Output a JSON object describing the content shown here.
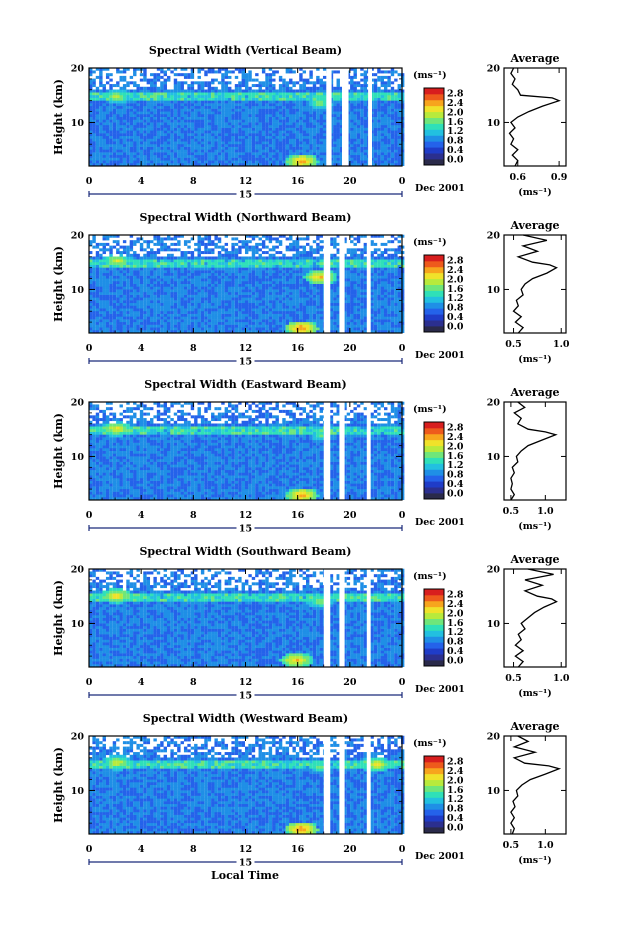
{
  "figure": {
    "xlabel": "Local Time",
    "date_label": "Dec 2001",
    "day_label": "15",
    "ylabel": "Height (km)",
    "cbar_unit": "(ms⁻¹)",
    "avg_title": "Average",
    "avg_xunit": "(ms⁻¹)"
  },
  "colors": {
    "colormap": [
      "#2b2f8f",
      "#1f3cc8",
      "#2462ea",
      "#1f8fe6",
      "#22c0e0",
      "#2fe0b8",
      "#6fe67a",
      "#b8ea3c",
      "#f0e22a",
      "#f7a51d",
      "#ee5a1c",
      "#d81e1e"
    ]
  },
  "chart_data": [
    {
      "type": "heatmap",
      "title": "Spectral Width (Vertical Beam)",
      "x_ticks": [
        "0",
        "4",
        "8",
        "12",
        "16",
        "20",
        "0"
      ],
      "xlim": [
        0,
        24
      ],
      "y_ticks": [
        "10",
        "20"
      ],
      "ylim": [
        2,
        20
      ],
      "colorbar_ticks": [
        "0.0",
        "0.4",
        "0.8",
        "1.2",
        "1.6",
        "2.0",
        "2.4",
        "2.8"
      ],
      "colorbar_range": [
        0,
        3.0
      ],
      "hotspots": [
        {
          "x": 2,
          "y": 14.5,
          "v": 2.0
        },
        {
          "x": 17.6,
          "y": 13.2,
          "v": 1.8
        },
        {
          "x": 16.2,
          "y": 2.6,
          "v": 2.5
        }
      ],
      "gaps_x": [
        [
          18.2,
          18.6
        ],
        [
          19.4,
          19.9
        ],
        [
          21.4,
          21.7
        ]
      ],
      "average": {
        "x_ticks": [
          "0.6",
          "0.9"
        ],
        "xlim": [
          0.5,
          0.95
        ],
        "y_ticks": [
          "10",
          "20"
        ],
        "profile": [
          [
            2,
            0.58
          ],
          [
            3,
            0.6
          ],
          [
            4,
            0.56
          ],
          [
            5,
            0.6
          ],
          [
            6,
            0.55
          ],
          [
            7,
            0.57
          ],
          [
            8,
            0.54
          ],
          [
            9,
            0.58
          ],
          [
            10,
            0.55
          ],
          [
            11,
            0.6
          ],
          [
            12,
            0.68
          ],
          [
            13,
            0.78
          ],
          [
            14,
            0.9
          ],
          [
            14.5,
            0.85
          ],
          [
            15,
            0.62
          ],
          [
            16,
            0.6
          ],
          [
            17,
            0.56
          ],
          [
            18,
            0.58
          ],
          [
            19,
            0.55
          ],
          [
            20,
            0.57
          ]
        ]
      }
    },
    {
      "type": "heatmap",
      "title": "Spectral Width (Northward Beam)",
      "x_ticks": [
        "0",
        "4",
        "8",
        "12",
        "16",
        "20",
        "0"
      ],
      "xlim": [
        0,
        24
      ],
      "y_ticks": [
        "10",
        "20"
      ],
      "ylim": [
        2,
        20
      ],
      "colorbar_ticks": [
        "0.0",
        "0.4",
        "0.8",
        "1.2",
        "1.6",
        "2.0",
        "2.4",
        "2.8"
      ],
      "colorbar_range": [
        0,
        3.0
      ],
      "hotspots": [
        {
          "x": 2,
          "y": 15,
          "v": 2.1
        },
        {
          "x": 17.6,
          "y": 12,
          "v": 2.4
        },
        {
          "x": 16.2,
          "y": 2.6,
          "v": 2.6
        }
      ],
      "gaps_x": [
        [
          18.0,
          18.5
        ],
        [
          19.2,
          19.6
        ],
        [
          21.3,
          21.6
        ]
      ],
      "average": {
        "x_ticks": [
          "0.5",
          "1.0"
        ],
        "xlim": [
          0.4,
          1.05
        ],
        "y_ticks": [
          "10",
          "20"
        ],
        "profile": [
          [
            2,
            0.55
          ],
          [
            3,
            0.6
          ],
          [
            4,
            0.52
          ],
          [
            5,
            0.58
          ],
          [
            6,
            0.5
          ],
          [
            7,
            0.55
          ],
          [
            8,
            0.53
          ],
          [
            9,
            0.6
          ],
          [
            10,
            0.58
          ],
          [
            11,
            0.62
          ],
          [
            12,
            0.7
          ],
          [
            13,
            0.85
          ],
          [
            14,
            0.95
          ],
          [
            14.5,
            0.88
          ],
          [
            15,
            0.7
          ],
          [
            16,
            0.55
          ],
          [
            17,
            0.75
          ],
          [
            18,
            0.6
          ],
          [
            19,
            0.85
          ],
          [
            20,
            0.6
          ]
        ]
      }
    },
    {
      "type": "heatmap",
      "title": "Spectral Width (Eastward Beam)",
      "x_ticks": [
        "0",
        "4",
        "8",
        "12",
        "16",
        "20",
        "0"
      ],
      "xlim": [
        0,
        24
      ],
      "y_ticks": [
        "10",
        "20"
      ],
      "ylim": [
        2,
        20
      ],
      "colorbar_ticks": [
        "0.0",
        "0.4",
        "0.8",
        "1.2",
        "1.6",
        "2.0",
        "2.4",
        "2.8"
      ],
      "colorbar_range": [
        0,
        3.0
      ],
      "hotspots": [
        {
          "x": 2,
          "y": 14.8,
          "v": 2.2
        },
        {
          "x": 17.6,
          "y": 13.5,
          "v": 1.6
        },
        {
          "x": 16.2,
          "y": 2.6,
          "v": 2.5
        }
      ],
      "gaps_x": [
        [
          18.0,
          18.5
        ],
        [
          19.2,
          19.6
        ],
        [
          21.3,
          21.6
        ]
      ],
      "average": {
        "x_ticks": [
          "0.5",
          "1.0"
        ],
        "xlim": [
          0.4,
          1.3
        ],
        "y_ticks": [
          "10",
          "20"
        ],
        "profile": [
          [
            2,
            0.5
          ],
          [
            3,
            0.55
          ],
          [
            4,
            0.5
          ],
          [
            5,
            0.52
          ],
          [
            6,
            0.5
          ],
          [
            7,
            0.55
          ],
          [
            8,
            0.52
          ],
          [
            9,
            0.6
          ],
          [
            10,
            0.58
          ],
          [
            11,
            0.65
          ],
          [
            12,
            0.75
          ],
          [
            13,
            0.95
          ],
          [
            14,
            1.15
          ],
          [
            14.5,
            1.0
          ],
          [
            15,
            0.75
          ],
          [
            16,
            0.6
          ],
          [
            17,
            0.65
          ],
          [
            18,
            0.55
          ],
          [
            19,
            0.7
          ],
          [
            20,
            0.6
          ]
        ]
      }
    },
    {
      "type": "heatmap",
      "title": "Spectral Width (Southward Beam)",
      "x_ticks": [
        "0",
        "4",
        "8",
        "12",
        "16",
        "20",
        "0"
      ],
      "xlim": [
        0,
        24
      ],
      "y_ticks": [
        "10",
        "20"
      ],
      "ylim": [
        2,
        20
      ],
      "colorbar_ticks": [
        "0.0",
        "0.4",
        "0.8",
        "1.2",
        "1.6",
        "2.0",
        "2.4",
        "2.8"
      ],
      "colorbar_range": [
        0,
        3.0
      ],
      "hotspots": [
        {
          "x": 2,
          "y": 14.8,
          "v": 2.3
        },
        {
          "x": 17.6,
          "y": 13.8,
          "v": 1.9
        },
        {
          "x": 15.8,
          "y": 3.0,
          "v": 2.4
        }
      ],
      "gaps_x": [
        [
          18.0,
          18.5
        ],
        [
          19.2,
          19.6
        ],
        [
          21.3,
          21.6
        ]
      ],
      "average": {
        "x_ticks": [
          "0.5",
          "1.0"
        ],
        "xlim": [
          0.4,
          1.05
        ],
        "y_ticks": [
          "10",
          "20"
        ],
        "profile": [
          [
            2,
            0.55
          ],
          [
            3,
            0.6
          ],
          [
            4,
            0.52
          ],
          [
            5,
            0.6
          ],
          [
            6,
            0.52
          ],
          [
            7,
            0.58
          ],
          [
            8,
            0.55
          ],
          [
            9,
            0.62
          ],
          [
            10,
            0.58
          ],
          [
            11,
            0.65
          ],
          [
            12,
            0.72
          ],
          [
            13,
            0.82
          ],
          [
            14,
            0.95
          ],
          [
            14.5,
            0.9
          ],
          [
            15,
            0.75
          ],
          [
            16,
            0.62
          ],
          [
            17,
            0.8
          ],
          [
            18,
            0.62
          ],
          [
            19,
            0.92
          ],
          [
            20,
            0.65
          ]
        ]
      }
    },
    {
      "type": "heatmap",
      "title": "Spectral Width (Westward Beam)",
      "x_ticks": [
        "0",
        "4",
        "8",
        "12",
        "16",
        "20",
        "0"
      ],
      "xlim": [
        0,
        24
      ],
      "y_ticks": [
        "10",
        "20"
      ],
      "ylim": [
        2,
        20
      ],
      "colorbar_ticks": [
        "0.0",
        "0.4",
        "0.8",
        "1.2",
        "1.6",
        "2.0",
        "2.4",
        "2.8"
      ],
      "colorbar_range": [
        0,
        3.0
      ],
      "hotspots": [
        {
          "x": 2,
          "y": 14.8,
          "v": 2.1
        },
        {
          "x": 17.6,
          "y": 14.0,
          "v": 1.7
        },
        {
          "x": 16.2,
          "y": 2.6,
          "v": 2.6
        },
        {
          "x": 21.9,
          "y": 14.5,
          "v": 2.2
        }
      ],
      "gaps_x": [
        [
          18.0,
          18.5
        ],
        [
          19.2,
          19.6
        ],
        [
          21.3,
          21.6
        ]
      ],
      "average": {
        "x_ticks": [
          "0.5",
          "1.0"
        ],
        "xlim": [
          0.4,
          1.3
        ],
        "y_ticks": [
          "10",
          "20"
        ],
        "profile": [
          [
            2,
            0.52
          ],
          [
            3,
            0.55
          ],
          [
            4,
            0.5
          ],
          [
            5,
            0.55
          ],
          [
            6,
            0.5
          ],
          [
            7,
            0.56
          ],
          [
            8,
            0.53
          ],
          [
            9,
            0.6
          ],
          [
            10,
            0.58
          ],
          [
            11,
            0.66
          ],
          [
            12,
            0.78
          ],
          [
            13,
            1.0
          ],
          [
            14,
            1.2
          ],
          [
            14.5,
            1.05
          ],
          [
            15,
            0.7
          ],
          [
            16,
            0.55
          ],
          [
            17,
            0.85
          ],
          [
            18,
            0.55
          ],
          [
            19,
            0.75
          ],
          [
            20,
            0.6
          ]
        ]
      }
    }
  ]
}
